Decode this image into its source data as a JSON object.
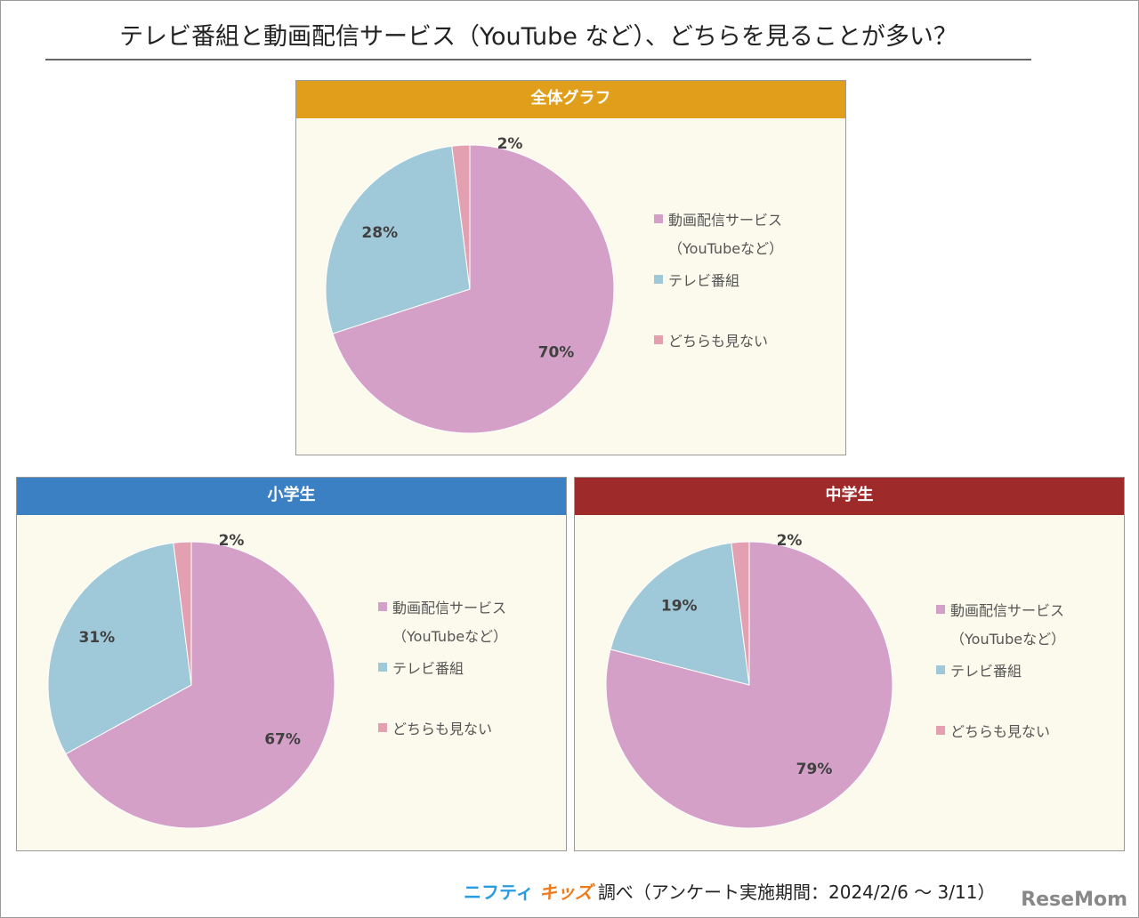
{
  "title": "テレビ番組と動画配信サービス（YouTube など）、どちらを見ることが多い？",
  "colors": {
    "video": "#d4a0c8",
    "tv": "#9fc8d8",
    "none": "#e3a0b0",
    "bg": "#fcfaec"
  },
  "legend": {
    "video": "動画配信サービス",
    "video_sub": "（YouTubeなど）",
    "tv": "テレビ番組",
    "none": "どちらも見ない"
  },
  "chart_data": [
    {
      "type": "pie",
      "title": "全体グラフ",
      "header_color": "#e09e1a",
      "categories": [
        "動画配信サービス（YouTubeなど）",
        "テレビ番組",
        "どちらも見ない"
      ],
      "values": [
        70,
        28,
        2
      ],
      "labels": [
        "70%",
        "28%",
        "2%"
      ]
    },
    {
      "type": "pie",
      "title": "小学生",
      "header_color": "#3a80c3",
      "categories": [
        "動画配信サービス（YouTubeなど）",
        "テレビ番組",
        "どちらも見ない"
      ],
      "values": [
        67,
        31,
        2
      ],
      "labels": [
        "67%",
        "31%",
        "2%"
      ]
    },
    {
      "type": "pie",
      "title": "中学生",
      "header_color": "#9e2a2a",
      "categories": [
        "動画配信サービス（YouTubeなど）",
        "テレビ番組",
        "どちらも見ない"
      ],
      "values": [
        79,
        19,
        2
      ],
      "labels": [
        "79%",
        "19%",
        "2%"
      ]
    }
  ],
  "footer": {
    "brand1": "ニフティ",
    "brand2": "キッズ",
    "text": "調べ（アンケート実施期間：2024/2/6 〜 3/11）",
    "watermark": "ReseMom"
  }
}
